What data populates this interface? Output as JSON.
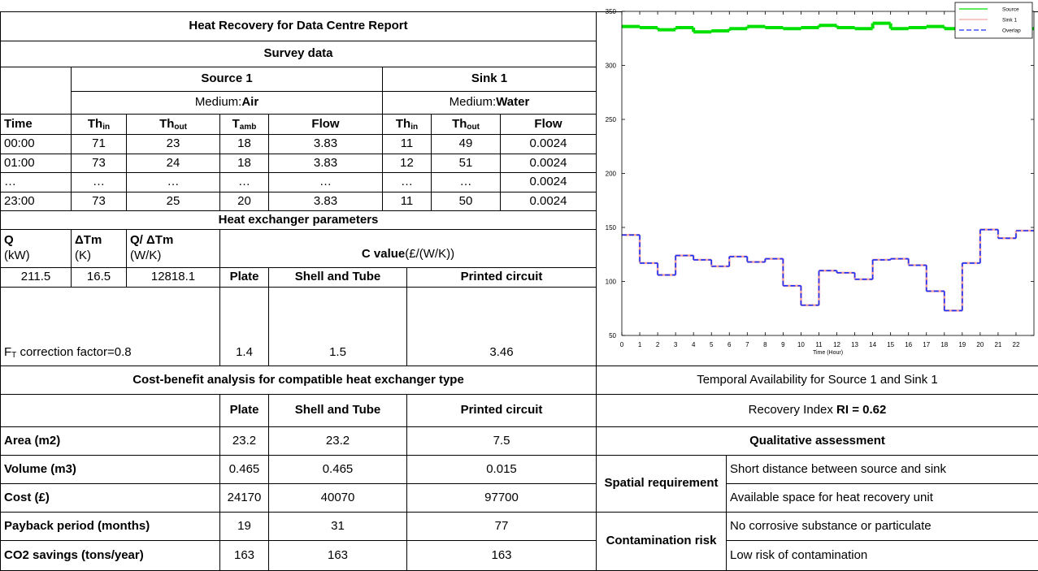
{
  "report": {
    "title": "Heat Recovery for Data Centre Report",
    "survey_title": "Survey data",
    "source": {
      "name": "Source 1",
      "medium_label": "Medium:",
      "medium": "Air"
    },
    "sink": {
      "name": "Sink 1",
      "medium_label": "Medium:",
      "medium": "Water"
    },
    "columns": [
      "Time",
      {
        "main": "Th",
        "sub": "in"
      },
      {
        "main": "Th",
        "sub": "out"
      },
      {
        "main": "T",
        "sub": "amb"
      },
      "Flow",
      {
        "main": "Th",
        "sub": "in"
      },
      {
        "main": "Th",
        "sub": "out"
      },
      "Flow"
    ],
    "rows": [
      [
        "00:00",
        "71",
        "23",
        "18",
        "3.83",
        "11",
        "49",
        "0.0024"
      ],
      [
        "01:00",
        "73",
        "24",
        "18",
        "3.83",
        "12",
        "51",
        "0.0024"
      ],
      [
        "…",
        "…",
        "…",
        "…",
        "…",
        "…",
        "…",
        "0.0024"
      ],
      [
        "23:00",
        "73",
        "25",
        "20",
        "3.83",
        "11",
        "50",
        "0.0024"
      ]
    ],
    "hx": {
      "title": "Heat exchanger parameters",
      "q_header": [
        {
          "name": "Q",
          "unit": "(kW)"
        },
        {
          "name": "ΔTm",
          "unit": "(K)"
        },
        {
          "name": "Q/ ΔTm",
          "unit": "(W/K)"
        }
      ],
      "c_label": "C value",
      "c_unit": "(£/(W/K))",
      "q_values": [
        "211.5",
        "16.5",
        "12818.1"
      ],
      "types": [
        "Plate",
        "Shell and Tube",
        "Printed circuit"
      ],
      "ft": {
        "main": "F",
        "sub": "T",
        "rest": " correction factor=0.8"
      },
      "c_values": [
        "1.4",
        "1.5",
        "3.46"
      ]
    },
    "cba": {
      "title": "Cost-benefit analysis for compatible heat exchanger type",
      "types": [
        "Plate",
        "Shell and Tube",
        "Printed circuit"
      ],
      "rows": [
        {
          "label": "Area (m2)",
          "values": [
            "23.2",
            "23.2",
            "7.5"
          ]
        },
        {
          "label": "Volume (m3)",
          "values": [
            "0.465",
            "0.465",
            "0.015"
          ]
        },
        {
          "label": "Cost (£)",
          "values": [
            "24170",
            "40070",
            "97700"
          ]
        },
        {
          "label": "Payback period (months)",
          "values": [
            "19",
            "31",
            "77"
          ]
        },
        {
          "label": "CO2 savings (tons/year)",
          "values": [
            "163",
            "163",
            "163"
          ]
        }
      ]
    },
    "availability_title": "Temporal Availability for Source 1 and Sink 1",
    "ri": {
      "label": "Recovery Index ",
      "value": "RI = 0.62"
    },
    "qualitative": {
      "title": "Qualitative assessment",
      "groups": [
        {
          "name": "Spatial requirement",
          "items": [
            "Short distance between source and sink",
            "Available space for heat recovery unit"
          ]
        },
        {
          "name": "Contamination risk",
          "items": [
            "No corrosive substance or particulate",
            "Low risk of contamination"
          ]
        }
      ]
    }
  },
  "chart_data": {
    "type": "line",
    "step": "post",
    "x": [
      0,
      1,
      2,
      3,
      4,
      5,
      6,
      7,
      8,
      9,
      10,
      11,
      12,
      13,
      14,
      15,
      16,
      17,
      18,
      19,
      20,
      21,
      22
    ],
    "series": [
      {
        "name": "Source",
        "color": "#00e000",
        "values": [
          336,
          335,
          333,
          335,
          331,
          332,
          334,
          336,
          335,
          334,
          335,
          337,
          335,
          334,
          339,
          334,
          335,
          336,
          334,
          335,
          336,
          335,
          334
        ]
      },
      {
        "name": "Sink 1",
        "color": "#f5a3a3",
        "values": [
          143,
          117,
          106,
          124,
          120,
          114,
          123,
          118,
          121,
          96,
          78,
          110,
          108,
          102,
          120,
          121,
          115,
          91,
          73,
          117,
          148,
          140,
          147
        ]
      },
      {
        "name": "Overlap",
        "color": "#1a33ff",
        "dash": true,
        "values": [
          143,
          117,
          106,
          124,
          120,
          114,
          123,
          118,
          121,
          96,
          78,
          110,
          108,
          102,
          120,
          121,
          115,
          91,
          73,
          117,
          148,
          140,
          147
        ]
      }
    ],
    "xlim": [
      0,
      23
    ],
    "ylim": [
      50,
      350
    ],
    "xticks": [
      0,
      1,
      2,
      3,
      4,
      5,
      6,
      7,
      8,
      9,
      10,
      11,
      12,
      13,
      14,
      15,
      16,
      17,
      18,
      19,
      20,
      21,
      22
    ],
    "yticks": [
      50,
      100,
      150,
      200,
      250,
      300,
      350
    ],
    "xlabel": "Time (Hour)",
    "legend": "upper right"
  }
}
